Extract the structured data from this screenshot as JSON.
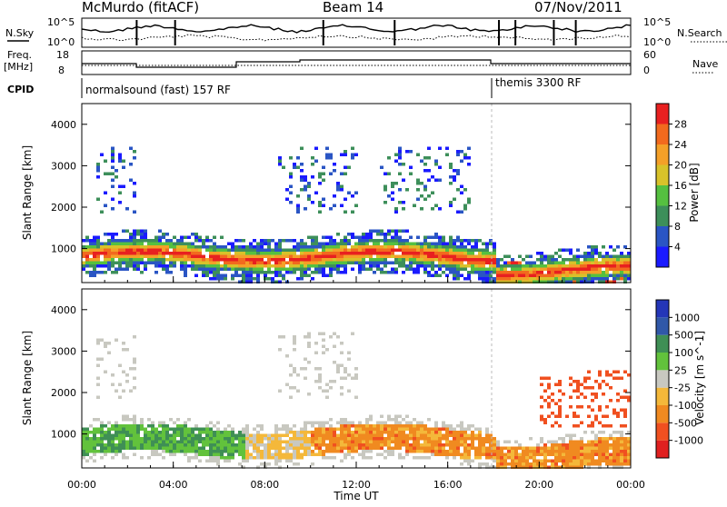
{
  "header": {
    "station": "McMurdo (fitACF)",
    "beam": "Beam 14",
    "date": "07/Nov/2011"
  },
  "summary": {
    "nsky_label": "N.Sky",
    "nsearch_label": "N.Search",
    "nsky_ticks": [
      "10^5",
      "10^0"
    ],
    "freq_label_1": "Freq.",
    "freq_label_2": "[MHz]",
    "freq_ticks": [
      "18",
      "8"
    ],
    "nave_label": "Nave",
    "nave_ticks": [
      "60",
      "0"
    ],
    "cpid_label": "CPID",
    "cpid_segments": [
      {
        "label": "normalsound (fast) 157 RF",
        "start_hour": 0
      },
      {
        "label": "themis 3300 RF",
        "start_hour": 18
      }
    ]
  },
  "chart_data": [
    {
      "type": "heatmap",
      "panel": "power",
      "xlabel": "Time UT",
      "ylabel": "Slant Range [km]",
      "colorbar_label": "Power [dB]",
      "xlim": [
        0,
        24
      ],
      "ylim": [
        180,
        4500
      ],
      "y_ticks": [
        1000,
        2000,
        3000,
        4000
      ],
      "colorbar_ticks": [
        "4",
        "8",
        "12",
        "16",
        "20",
        "24",
        "28"
      ],
      "colorbar_colors": [
        "#1a1aff",
        "#2a55c4",
        "#3d8f5a",
        "#55c040",
        "#d8c22a",
        "#f4a028",
        "#f26a1e",
        "#e82020"
      ]
    },
    {
      "type": "heatmap",
      "panel": "velocity",
      "xlabel": "Time UT",
      "ylabel": "Slant Range [km]",
      "colorbar_label": "Velocity [m s^-1]",
      "xlim": [
        0,
        24
      ],
      "ylim": [
        180,
        4500
      ],
      "y_ticks": [
        1000,
        2000,
        3000,
        4000
      ],
      "colorbar_ticks": [
        "1000",
        "500",
        "100",
        "25",
        "-25",
        "-100",
        "-500",
        "-1000"
      ],
      "colorbar_colors": [
        "#2436b8",
        "#3058a8",
        "#3f8f55",
        "#62c23c",
        "#c8c8c0",
        "#f4b83a",
        "#f08a20",
        "#f05020",
        "#e02020"
      ],
      "x_ticks": [
        "00:00",
        "04:00",
        "08:00",
        "12:00",
        "16:00",
        "20:00",
        "00:00"
      ]
    }
  ]
}
